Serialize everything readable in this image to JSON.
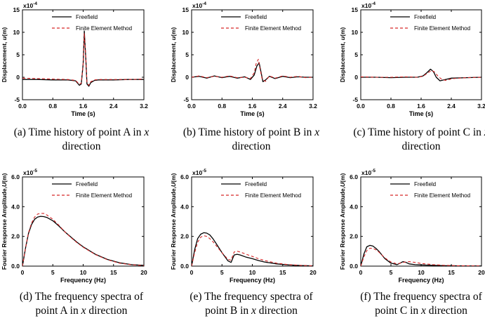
{
  "figure": {
    "captions": [
      {
        "line1_prefix": "(a) Time history of point A in ",
        "line1_var": "x",
        "line2": "direction"
      },
      {
        "line1_prefix": "(b) Time history of point B in ",
        "line1_var": "x",
        "line2": "direction"
      },
      {
        "line1_prefix": "(c) Time history of point C in ",
        "line1_var": "x",
        "line2": "direction"
      },
      {
        "line1_prefix": "(d) The frequency spectra of",
        "line1_var": "",
        "line2_prefix": "point A in ",
        "line2_var": "x",
        "line2_suffix": " direction"
      },
      {
        "line1_prefix": "(e) The frequency spectra of",
        "line1_var": "",
        "line2_prefix": "point B in ",
        "line2_var": "x",
        "line2_suffix": " direction"
      },
      {
        "line1_prefix": "(f) The frequency spectra of",
        "line1_var": "",
        "line2_prefix": "point C in ",
        "line2_var": "x",
        "line2_suffix": " direction"
      }
    ]
  },
  "chart_data": [
    {
      "id": "a",
      "type": "line",
      "xlabel": "Time (s)",
      "ylabel_prefix": "Displacement, ",
      "ylabel_var": "u",
      "ylabel_suffix": "(m)",
      "scale_base": "x10",
      "scale_exp": "-4",
      "xlim": [
        0,
        3.2
      ],
      "ylim": [
        -5,
        15
      ],
      "xticks": [
        0.0,
        0.8,
        1.6,
        2.4,
        3.2
      ],
      "xtick_labels": [
        "0.0",
        "0.8",
        "1.6",
        "2.4",
        "3.2"
      ],
      "yticks": [
        -5,
        0,
        5,
        10,
        15
      ],
      "ytick_labels": [
        "-5",
        "0",
        "5",
        "10",
        "15"
      ],
      "legend": [
        "Freefield",
        "Finite Element Method"
      ],
      "series": [
        {
          "name": "Freefield",
          "color": "#000000",
          "dash": "",
          "x": [
            0,
            0.4,
            0.8,
            1.2,
            1.4,
            1.5,
            1.55,
            1.6,
            1.63,
            1.67,
            1.7,
            1.75,
            1.8,
            1.9,
            2.0,
            2.4,
            2.8,
            3.2
          ],
          "y": [
            -0.5,
            -0.5,
            -0.6,
            -0.6,
            -0.8,
            -1.8,
            -1.5,
            3,
            10.3,
            4,
            -1.5,
            -2.0,
            -1.2,
            -0.7,
            -0.6,
            -0.6,
            -0.5,
            -0.5
          ]
        },
        {
          "name": "Finite Element Method",
          "color": "#d62728",
          "dash": "4,3",
          "x": [
            0,
            0.4,
            0.8,
            1.2,
            1.4,
            1.5,
            1.55,
            1.6,
            1.63,
            1.67,
            1.7,
            1.75,
            1.8,
            1.9,
            2.0,
            2.4,
            2.8,
            3.2
          ],
          "y": [
            -0.2,
            -0.3,
            -0.4,
            -0.5,
            -0.7,
            -1.6,
            -1.3,
            3,
            9.8,
            4.3,
            -1.2,
            -1.8,
            -1.0,
            -0.6,
            -0.5,
            -0.5,
            -0.5,
            -0.4
          ]
        }
      ]
    },
    {
      "id": "b",
      "type": "line",
      "xlabel": "Time (s)",
      "ylabel_prefix": "Displacement, ",
      "ylabel_var": "u",
      "ylabel_suffix": "(m)",
      "scale_base": "x10",
      "scale_exp": "-4",
      "xlim": [
        0,
        3.2
      ],
      "ylim": [
        -5,
        15
      ],
      "xticks": [
        0.0,
        0.8,
        1.6,
        2.4,
        3.2
      ],
      "xtick_labels": [
        "0.0",
        "0.8",
        "1.6",
        "2.4",
        "3.2"
      ],
      "yticks": [
        -5,
        0,
        5,
        10,
        15
      ],
      "ytick_labels": [
        "-5",
        "0",
        "5",
        "10",
        "15"
      ],
      "legend": [
        "Freefield",
        "Finite Element Method"
      ],
      "series": [
        {
          "name": "Freefield",
          "color": "#000000",
          "dash": "",
          "x": [
            0,
            0.2,
            0.4,
            0.6,
            0.8,
            1.0,
            1.2,
            1.4,
            1.55,
            1.65,
            1.72,
            1.78,
            1.82,
            1.88,
            1.95,
            2.05,
            2.2,
            2.4,
            2.6,
            2.8,
            3.0,
            3.2
          ],
          "y": [
            0,
            0.2,
            -0.2,
            0.3,
            -0.1,
            0.2,
            -0.2,
            0.1,
            -0.5,
            0.5,
            2.5,
            3.2,
            1.5,
            -1.0,
            -0.6,
            0.2,
            -0.3,
            0.2,
            -0.1,
            0.1,
            0,
            0
          ]
        },
        {
          "name": "Finite Element Method",
          "color": "#d62728",
          "dash": "4,3",
          "x": [
            0,
            0.2,
            0.4,
            0.6,
            0.8,
            1.0,
            1.2,
            1.4,
            1.55,
            1.65,
            1.7,
            1.76,
            1.8,
            1.86,
            1.95,
            2.05,
            2.2,
            2.4,
            2.6,
            2.8,
            3.0,
            3.2
          ],
          "y": [
            0,
            0.3,
            -0.1,
            0.2,
            0,
            0.3,
            -0.1,
            0,
            -0.3,
            1.0,
            3.0,
            4.0,
            2.0,
            -0.5,
            -0.9,
            0.3,
            -0.2,
            0.3,
            0,
            0.2,
            -0.1,
            0
          ]
        }
      ]
    },
    {
      "id": "c",
      "type": "line",
      "xlabel": "Time (s)",
      "ylabel_prefix": "Displacement, ",
      "ylabel_var": "u",
      "ylabel_suffix": "(m)",
      "scale_base": "x10",
      "scale_exp": "-4",
      "xlim": [
        0,
        3.2
      ],
      "ylim": [
        -5,
        15
      ],
      "xticks": [
        0.0,
        0.8,
        1.6,
        2.4,
        3.2
      ],
      "xtick_labels": [
        "0.0",
        "0.8",
        "1.6",
        "2.4",
        "3.2"
      ],
      "yticks": [
        -5,
        0,
        5,
        10,
        15
      ],
      "ytick_labels": [
        "-5",
        "0",
        "5",
        "10",
        "15"
      ],
      "legend": [
        "Freefield",
        "Finite Element Method"
      ],
      "series": [
        {
          "name": "Freefield",
          "color": "#000000",
          "dash": "",
          "x": [
            0,
            0.4,
            0.8,
            1.2,
            1.5,
            1.65,
            1.75,
            1.85,
            1.93,
            2.0,
            2.1,
            2.2,
            2.4,
            2.8,
            3.2
          ],
          "y": [
            0,
            0,
            -0.1,
            0,
            0,
            0.3,
            1.0,
            1.8,
            1.2,
            0,
            -0.8,
            -0.6,
            -0.2,
            -0.1,
            0
          ]
        },
        {
          "name": "Finite Element Method",
          "color": "#d62728",
          "dash": "4,3",
          "x": [
            0,
            0.4,
            0.8,
            1.2,
            1.5,
            1.65,
            1.78,
            1.88,
            1.95,
            2.05,
            2.15,
            2.25,
            2.45,
            2.8,
            3.2
          ],
          "y": [
            0.1,
            0,
            0,
            0.1,
            0,
            0.2,
            1.0,
            1.5,
            1.2,
            0.2,
            -0.5,
            -0.7,
            -0.3,
            -0.1,
            0
          ]
        }
      ]
    },
    {
      "id": "d",
      "type": "line",
      "xlabel": "Frequency (Hz)",
      "ylabel_prefix": "Fourier Response Amplitude,",
      "ylabel_var": "U",
      "ylabel_suffix": "(m)",
      "scale_base": "x10",
      "scale_exp": "-5",
      "xlim": [
        0,
        20
      ],
      "ylim": [
        0,
        6
      ],
      "xticks": [
        0,
        5,
        10,
        15,
        20
      ],
      "xtick_labels": [
        "0",
        "5",
        "10",
        "15",
        "20"
      ],
      "yticks": [
        0,
        2,
        4,
        6
      ],
      "ytick_labels": [
        "0.0",
        "2.0",
        "4.0",
        "6.0"
      ],
      "legend": [
        "Freefield",
        "Finite Element Method"
      ],
      "series": [
        {
          "name": "Freefield",
          "color": "#000000",
          "dash": "",
          "x": [
            0,
            0.5,
            1,
            1.5,
            2,
            2.5,
            3,
            3.5,
            4,
            5,
            6,
            7,
            8,
            9,
            10,
            12,
            14,
            16,
            18,
            20
          ],
          "y": [
            0,
            1.2,
            2.2,
            2.8,
            3.15,
            3.3,
            3.35,
            3.33,
            3.28,
            3.05,
            2.7,
            2.3,
            1.95,
            1.6,
            1.3,
            0.8,
            0.45,
            0.22,
            0.1,
            0.05
          ]
        },
        {
          "name": "Finite Element Method",
          "color": "#d62728",
          "dash": "4,3",
          "x": [
            0,
            0.5,
            1,
            1.5,
            2,
            2.5,
            3,
            3.5,
            4,
            5,
            6,
            7,
            8,
            9,
            10,
            12,
            14,
            16,
            18,
            20
          ],
          "y": [
            0,
            1.2,
            2.25,
            2.9,
            3.3,
            3.5,
            3.55,
            3.55,
            3.45,
            3.15,
            2.75,
            2.3,
            1.92,
            1.57,
            1.27,
            0.78,
            0.43,
            0.2,
            0.09,
            0.04
          ]
        }
      ]
    },
    {
      "id": "e",
      "type": "line",
      "xlabel": "Frequency (Hz)",
      "ylabel_prefix": "Fourier Response Amplitude,",
      "ylabel_var": "U",
      "ylabel_suffix": "(m)",
      "scale_base": "x10",
      "scale_exp": "-5",
      "xlim": [
        0,
        20
      ],
      "ylim": [
        0,
        6
      ],
      "xticks": [
        0,
        5,
        10,
        15,
        20
      ],
      "xtick_labels": [
        "0",
        "5",
        "10",
        "15",
        "20"
      ],
      "yticks": [
        0,
        2,
        4,
        6
      ],
      "ytick_labels": [
        "0.0",
        "2.0",
        "4.0",
        "6.0"
      ],
      "legend": [
        "Freefield",
        "Finite Element Method"
      ],
      "series": [
        {
          "name": "Freefield",
          "color": "#000000",
          "dash": "",
          "x": [
            0,
            0.5,
            1,
            1.5,
            2,
            2.5,
            3,
            3.5,
            4,
            5,
            6,
            6.5,
            7,
            7.5,
            8,
            9,
            10,
            11,
            12,
            14,
            16,
            18,
            20
          ],
          "y": [
            0,
            1.1,
            1.85,
            2.15,
            2.25,
            2.22,
            2.1,
            1.85,
            1.55,
            0.9,
            0.35,
            0.25,
            0.75,
            0.8,
            0.75,
            0.6,
            0.5,
            0.38,
            0.28,
            0.15,
            0.08,
            0.04,
            0.02
          ]
        },
        {
          "name": "Finite Element Method",
          "color": "#d62728",
          "dash": "4,3",
          "x": [
            0,
            0.5,
            1,
            1.5,
            2,
            2.5,
            3,
            3.5,
            4,
            5,
            6,
            6.5,
            7,
            7.5,
            8,
            9,
            10,
            11,
            12,
            14,
            16,
            18,
            20
          ],
          "y": [
            0,
            0.9,
            1.6,
            1.95,
            2.05,
            2.0,
            1.85,
            1.65,
            1.4,
            0.9,
            0.45,
            0.4,
            0.95,
            1.0,
            0.95,
            0.8,
            0.65,
            0.5,
            0.38,
            0.2,
            0.1,
            0.05,
            0.02
          ]
        }
      ]
    },
    {
      "id": "f",
      "type": "line",
      "xlabel": "Frequency (Hz)",
      "ylabel_prefix": "Fourier Response Amplitude,",
      "ylabel_var": "U",
      "ylabel_suffix": "(m)",
      "scale_base": "x10",
      "scale_exp": "-5",
      "xlim": [
        0,
        20
      ],
      "ylim": [
        0,
        6
      ],
      "xticks": [
        0,
        5,
        10,
        15,
        20
      ],
      "xtick_labels": [
        "0",
        "5",
        "10",
        "15",
        "20"
      ],
      "yticks": [
        0,
        2,
        4,
        6
      ],
      "ytick_labels": [
        "0.0",
        "2.0",
        "4.0",
        "6.0"
      ],
      "legend": [
        "Freefield",
        "Finite Element Method"
      ],
      "series": [
        {
          "name": "Freefield",
          "color": "#000000",
          "dash": "",
          "x": [
            0,
            0.5,
            1,
            1.5,
            2,
            2.5,
            3,
            3.5,
            4,
            5,
            6,
            6.5,
            7,
            7.5,
            8,
            9,
            10,
            12,
            14,
            16,
            18,
            20
          ],
          "y": [
            0,
            0.8,
            1.3,
            1.4,
            1.35,
            1.2,
            1.0,
            0.75,
            0.5,
            0.2,
            0.1,
            0.2,
            0.3,
            0.25,
            0.15,
            0.1,
            0.08,
            0.05,
            0.03,
            0.02,
            0.01,
            0.01
          ]
        },
        {
          "name": "Finite Element Method",
          "color": "#d62728",
          "dash": "4,3",
          "x": [
            0,
            0.5,
            1,
            1.5,
            2,
            2.5,
            3,
            3.5,
            4,
            5,
            6,
            6.5,
            7,
            7.5,
            8,
            9,
            10,
            12,
            14,
            16,
            18,
            20
          ],
          "y": [
            0,
            0.6,
            1.05,
            1.2,
            1.2,
            1.1,
            0.95,
            0.75,
            0.55,
            0.28,
            0.15,
            0.2,
            0.25,
            0.28,
            0.3,
            0.25,
            0.18,
            0.1,
            0.05,
            0.03,
            0.02,
            0.01
          ]
        }
      ]
    }
  ]
}
